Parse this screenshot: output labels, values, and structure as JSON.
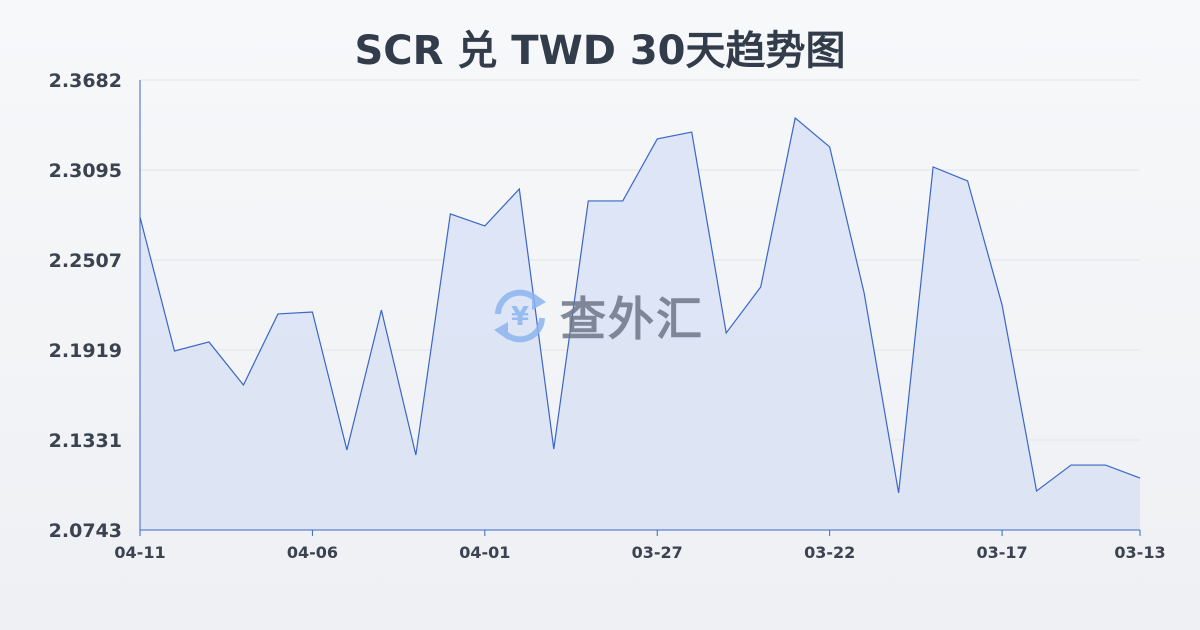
{
  "chart_data": {
    "type": "area",
    "title": "SCR 兑 TWD 30天趋势图",
    "xlabel": "",
    "ylabel": "",
    "categories": [
      "04-11",
      "04-10",
      "04-09",
      "04-08",
      "04-07",
      "04-06",
      "04-05",
      "04-04",
      "04-03",
      "04-02",
      "04-01",
      "03-31",
      "03-30",
      "03-29",
      "03-28",
      "03-27",
      "03-26",
      "03-25",
      "03-24",
      "03-23",
      "03-22",
      "03-21",
      "03-20",
      "03-19",
      "03-18",
      "03-17",
      "03-16",
      "03-15",
      "03-14",
      "03-13"
    ],
    "values": [
      2.2787,
      2.1912,
      2.1971,
      2.169,
      2.2154,
      2.2167,
      2.1266,
      2.218,
      2.1233,
      2.2807,
      2.2729,
      2.297,
      2.1272,
      2.2892,
      2.2892,
      2.3297,
      2.3342,
      2.203,
      2.233,
      2.3434,
      2.3245,
      2.2291,
      2.0985,
      2.3114,
      2.3023,
      2.2213,
      2.0998,
      2.1167,
      2.1167,
      2.1082
    ],
    "x_tick_labels": [
      "04-11",
      "04-06",
      "04-01",
      "03-27",
      "03-22",
      "03-17",
      "03-13"
    ],
    "y_tick_labels": [
      "2.3682",
      "2.3095",
      "2.2507",
      "2.1919",
      "2.1331",
      "2.0743"
    ],
    "ylim": [
      2.0743,
      2.3682
    ],
    "grid": true,
    "line_color": "#3a66c8",
    "fill_color": "#dae3f5"
  },
  "watermark": {
    "text": "查外汇",
    "icon": "yen-exchange-icon"
  }
}
